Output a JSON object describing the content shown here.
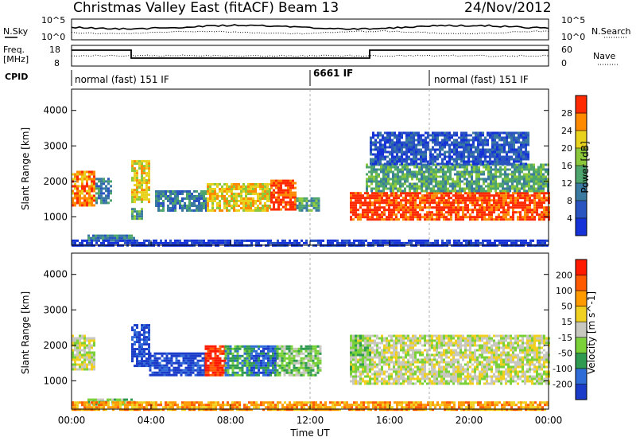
{
  "header": {
    "title": "Christmas Valley East (fitACF)",
    "beam": "Beam 13",
    "date": "24/Nov/2012"
  },
  "strip_nsky": {
    "label": "N.Sky",
    "right_label": "N.Search",
    "y_ticks_left": [
      "10^5",
      "10^0"
    ],
    "y_ticks_right": [
      "10^5",
      "10^0"
    ]
  },
  "strip_freq": {
    "label_line1": "Freq.",
    "label_line2": "[MHz]",
    "right_label": "Nave",
    "y_ticks_left": [
      "18",
      "8"
    ],
    "y_ticks_right": [
      "60",
      "0"
    ]
  },
  "cpid": {
    "label": "CPID",
    "segments": [
      {
        "text": "normal (fast) 151 IF",
        "start_hour": 0
      },
      {
        "text": "6661 IF",
        "start_hour": 12
      },
      {
        "text": "normal (fast) 151 IF",
        "start_hour": 18
      }
    ]
  },
  "chart_data": [
    {
      "type": "heatmap",
      "panel": "power",
      "ylabel": "Slant Range [km]",
      "y_ticks": [
        1000,
        2000,
        3000,
        4000
      ],
      "ylim": [
        200,
        4600
      ],
      "xlim": [
        0,
        24
      ],
      "colorbar": {
        "label": "Power [dB]",
        "ticks": [
          "4",
          "8",
          "12",
          "16",
          "20",
          "24",
          "28"
        ],
        "colors": [
          "#1432d8",
          "#2a55c0",
          "#3a7aa0",
          "#4ea66e",
          "#8cc83c",
          "#e8d21e",
          "#ff8a00",
          "#ff2a00"
        ]
      },
      "regions": [
        {
          "t0": 0.0,
          "t1": 1.1,
          "r0": 1350,
          "r1": 2300,
          "level": 6
        },
        {
          "t0": 1.2,
          "t1": 2.0,
          "r0": 1400,
          "r1": 2100,
          "level": 2
        },
        {
          "t0": 3.0,
          "t1": 3.9,
          "r0": 1400,
          "r1": 2600,
          "level": 5
        },
        {
          "t0": 3.0,
          "t1": 3.6,
          "r0": 950,
          "r1": 1250,
          "level": 3
        },
        {
          "t0": 4.2,
          "t1": 6.8,
          "r0": 1150,
          "r1": 1750,
          "level": 2
        },
        {
          "t0": 6.8,
          "t1": 10.0,
          "r0": 1150,
          "r1": 1950,
          "level": 5
        },
        {
          "t0": 10.0,
          "t1": 11.3,
          "r0": 1200,
          "r1": 2050,
          "level": 7
        },
        {
          "t0": 11.3,
          "t1": 12.5,
          "r0": 1150,
          "r1": 1550,
          "level": 3
        },
        {
          "t0": 14.0,
          "t1": 24.0,
          "r0": 950,
          "r1": 1700,
          "level": 7
        },
        {
          "t0": 14.8,
          "t1": 24.0,
          "r0": 1700,
          "r1": 2500,
          "level": 3
        },
        {
          "t0": 15.0,
          "t1": 23.0,
          "r0": 2500,
          "r1": 3400,
          "level": 1
        },
        {
          "t0": 0.8,
          "t1": 3.2,
          "r0": 320,
          "r1": 500,
          "level": 2
        },
        {
          "t0": 0.0,
          "t1": 24.0,
          "r0": 200,
          "r1": 360,
          "level": 0
        }
      ]
    },
    {
      "type": "heatmap",
      "panel": "velocity",
      "ylabel": "Slant Range [km]",
      "y_ticks": [
        1000,
        2000,
        3000,
        4000
      ],
      "ylim": [
        200,
        4600
      ],
      "xlim": [
        0,
        24
      ],
      "x_ticks": [
        "00:00",
        "04:00",
        "08:00",
        "12:00",
        "16:00",
        "20:00",
        "00:00"
      ],
      "xlabel": "Time UT",
      "colorbar": {
        "label": "Velocity [m s^-1]",
        "ticks": [
          "200",
          "100",
          "50",
          "15",
          "-15",
          "-50",
          "-100",
          "-200"
        ],
        "colors": [
          "#1a3cc8",
          "#2f6cd8",
          "#2f9a50",
          "#7ad238",
          "#c8c8c0",
          "#f0d020",
          "#ff9a00",
          "#ff5a00",
          "#ff1a00"
        ]
      },
      "regions": [
        {
          "t0": 0.0,
          "t1": 1.1,
          "r0": 1350,
          "r1": 2300,
          "level": 4
        },
        {
          "t0": 3.0,
          "t1": 3.9,
          "r0": 1400,
          "r1": 2600,
          "level": 0
        },
        {
          "t0": 3.9,
          "t1": 6.7,
          "r0": 1150,
          "r1": 1800,
          "level": 0
        },
        {
          "t0": 6.7,
          "t1": 7.7,
          "r0": 1150,
          "r1": 2000,
          "level": 8
        },
        {
          "t0": 7.7,
          "t1": 9.0,
          "r0": 1150,
          "r1": 2000,
          "level": 2
        },
        {
          "t0": 9.0,
          "t1": 10.3,
          "r0": 1150,
          "r1": 2000,
          "level": 1
        },
        {
          "t0": 10.3,
          "t1": 12.5,
          "r0": 1150,
          "r1": 2000,
          "level": 3
        },
        {
          "t0": 14.0,
          "t1": 24.0,
          "r0": 950,
          "r1": 2300,
          "level": 4
        },
        {
          "t0": 14.0,
          "t1": 15.0,
          "r0": 1300,
          "r1": 2300,
          "level": 3
        },
        {
          "t0": 0.8,
          "t1": 3.2,
          "r0": 320,
          "r1": 500,
          "level": 3
        },
        {
          "t0": 0.0,
          "t1": 24.0,
          "r0": 200,
          "r1": 420,
          "level": 6
        }
      ]
    }
  ]
}
